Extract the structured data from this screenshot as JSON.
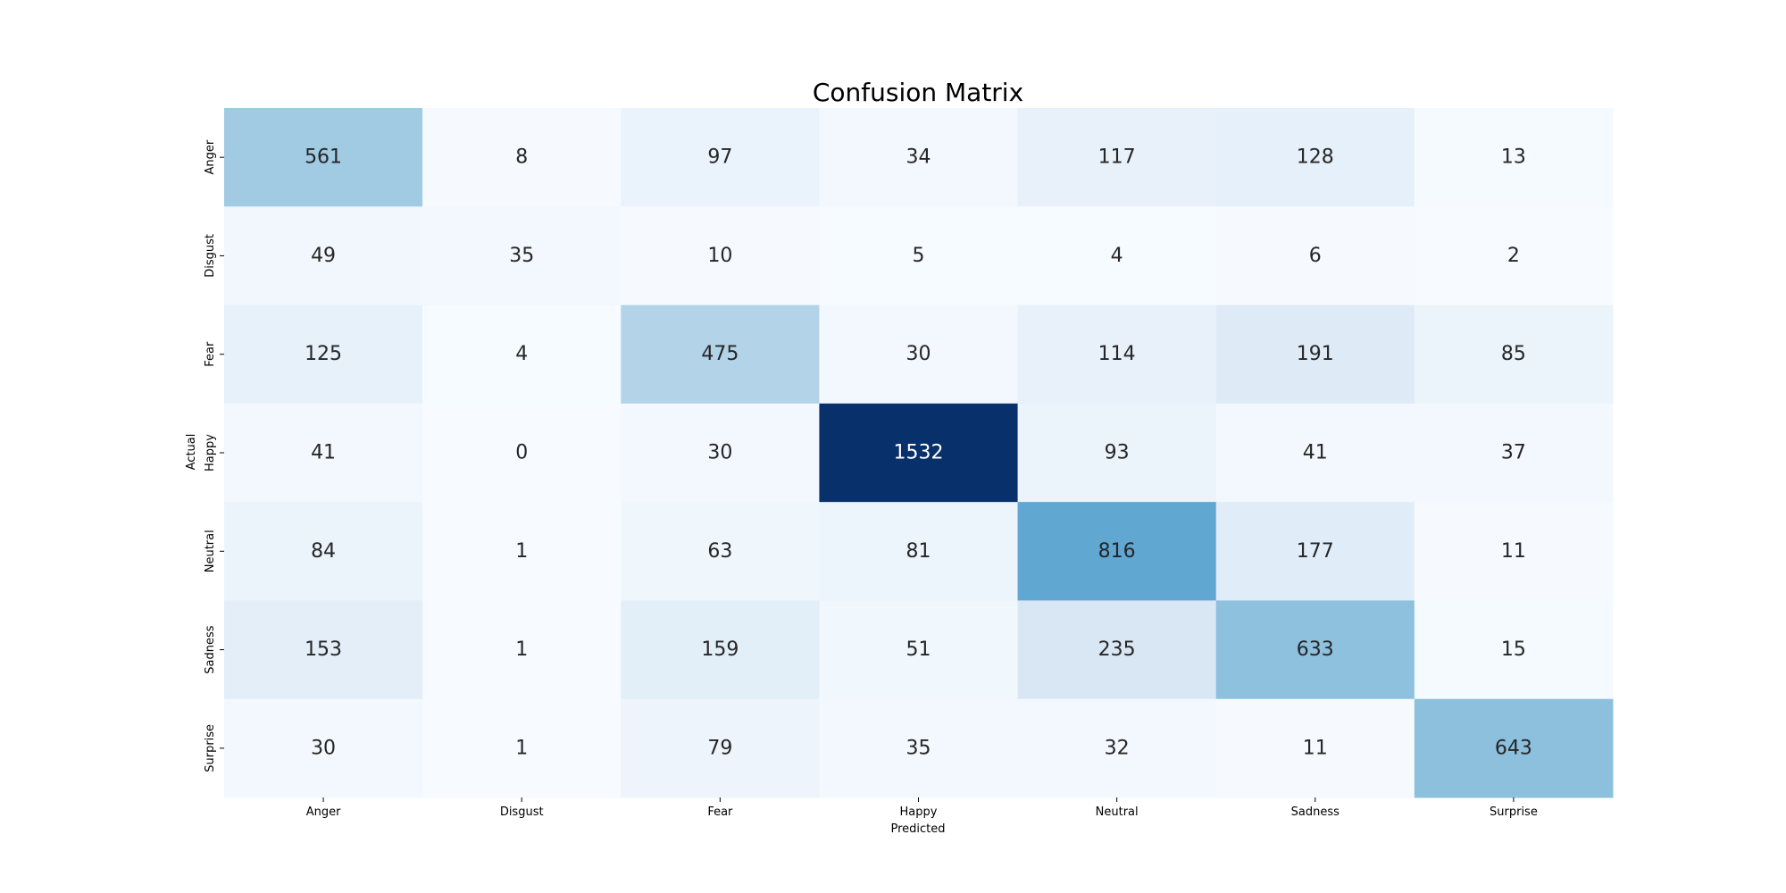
{
  "chart_data": {
    "type": "heatmap",
    "title": "Confusion Matrix",
    "xlabel": "Predicted",
    "ylabel": "Actual",
    "x_categories": [
      "Anger",
      "Disgust",
      "Fear",
      "Happy",
      "Neutral",
      "Sadness",
      "Surprise"
    ],
    "y_categories": [
      "Anger",
      "Disgust",
      "Fear",
      "Happy",
      "Neutral",
      "Sadness",
      "Surprise"
    ],
    "values": [
      [
        561,
        8,
        97,
        34,
        117,
        128,
        13
      ],
      [
        49,
        35,
        10,
        5,
        4,
        6,
        2
      ],
      [
        125,
        4,
        475,
        30,
        114,
        191,
        85
      ],
      [
        41,
        0,
        30,
        1532,
        93,
        41,
        37
      ],
      [
        84,
        1,
        63,
        81,
        816,
        177,
        11
      ],
      [
        153,
        1,
        159,
        51,
        235,
        633,
        15
      ],
      [
        30,
        1,
        79,
        35,
        32,
        11,
        643
      ]
    ],
    "colormap": "Blues",
    "vmin": 0,
    "vmax": 1532,
    "colorbar": false,
    "grid": false
  }
}
